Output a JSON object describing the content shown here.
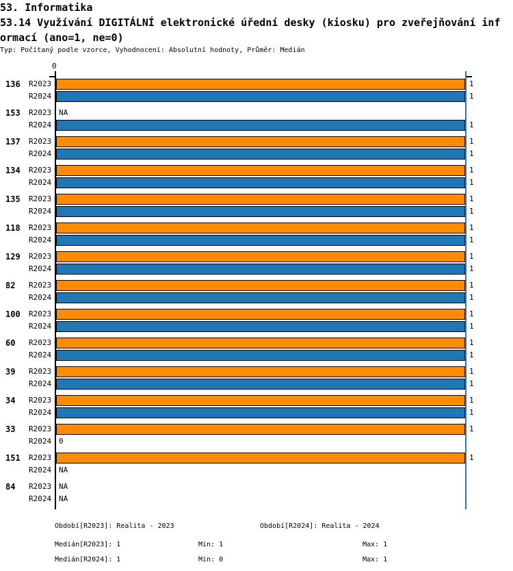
{
  "header": {
    "line1": "53. Informatika",
    "line2": "53.14 Využívání DIGITÁLNÍ elektronické úřední desky (kiosku) pro zveřejňování inf",
    "line3": "ormací (ano=1, ne=0)",
    "meta": "Typ: Počítaný podle vzorce, Vyhodnocení: Absolutní hodnoty, Průměr: Medián"
  },
  "chart_data": {
    "type": "bar",
    "orientation": "horizontal",
    "title": "53.14 Využívání DIGITÁLNÍ elektronické úřední desky (kiosku) pro zveřejňování informací (ano=1, ne=0)",
    "x_axis": {
      "zero_label": "0",
      "xlim": [
        0,
        1
      ],
      "reference_line_value": 1
    },
    "series_names": [
      "R2023",
      "R2024"
    ],
    "colors": {
      "R2023": "#FF8C00",
      "R2024": "#1F77B4",
      "reference_line": "#2878B8"
    },
    "categories": [
      "136",
      "153",
      "137",
      "134",
      "135",
      "118",
      "129",
      "82",
      "100",
      "60",
      "39",
      "34",
      "33",
      "151",
      "84"
    ],
    "groups": [
      {
        "id": "136",
        "bars": [
          {
            "period": "R2023",
            "value": 1,
            "label": "1"
          },
          {
            "period": "R2024",
            "value": 1,
            "label": "1"
          }
        ]
      },
      {
        "id": "153",
        "bars": [
          {
            "period": "R2023",
            "value": null,
            "label": "NA"
          },
          {
            "period": "R2024",
            "value": 1,
            "label": "1"
          }
        ]
      },
      {
        "id": "137",
        "bars": [
          {
            "period": "R2023",
            "value": 1,
            "label": "1"
          },
          {
            "period": "R2024",
            "value": 1,
            "label": "1"
          }
        ]
      },
      {
        "id": "134",
        "bars": [
          {
            "period": "R2023",
            "value": 1,
            "label": "1"
          },
          {
            "period": "R2024",
            "value": 1,
            "label": "1"
          }
        ]
      },
      {
        "id": "135",
        "bars": [
          {
            "period": "R2023",
            "value": 1,
            "label": "1"
          },
          {
            "period": "R2024",
            "value": 1,
            "label": "1"
          }
        ]
      },
      {
        "id": "118",
        "bars": [
          {
            "period": "R2023",
            "value": 1,
            "label": "1"
          },
          {
            "period": "R2024",
            "value": 1,
            "label": "1"
          }
        ]
      },
      {
        "id": "129",
        "bars": [
          {
            "period": "R2023",
            "value": 1,
            "label": "1"
          },
          {
            "period": "R2024",
            "value": 1,
            "label": "1"
          }
        ]
      },
      {
        "id": "82",
        "bars": [
          {
            "period": "R2023",
            "value": 1,
            "label": "1"
          },
          {
            "period": "R2024",
            "value": 1,
            "label": "1"
          }
        ]
      },
      {
        "id": "100",
        "bars": [
          {
            "period": "R2023",
            "value": 1,
            "label": "1"
          },
          {
            "period": "R2024",
            "value": 1,
            "label": "1"
          }
        ]
      },
      {
        "id": "60",
        "bars": [
          {
            "period": "R2023",
            "value": 1,
            "label": "1"
          },
          {
            "period": "R2024",
            "value": 1,
            "label": "1"
          }
        ]
      },
      {
        "id": "39",
        "bars": [
          {
            "period": "R2023",
            "value": 1,
            "label": "1"
          },
          {
            "period": "R2024",
            "value": 1,
            "label": "1"
          }
        ]
      },
      {
        "id": "34",
        "bars": [
          {
            "period": "R2023",
            "value": 1,
            "label": "1"
          },
          {
            "period": "R2024",
            "value": 1,
            "label": "1"
          }
        ]
      },
      {
        "id": "33",
        "bars": [
          {
            "period": "R2023",
            "value": 1,
            "label": "1"
          },
          {
            "period": "R2024",
            "value": 0,
            "label": "0"
          }
        ]
      },
      {
        "id": "151",
        "bars": [
          {
            "period": "R2023",
            "value": 1,
            "label": "1"
          },
          {
            "period": "R2024",
            "value": null,
            "label": "NA"
          }
        ]
      },
      {
        "id": "84",
        "bars": [
          {
            "period": "R2023",
            "value": null,
            "label": "NA"
          },
          {
            "period": "R2024",
            "value": null,
            "label": "NA"
          }
        ]
      }
    ]
  },
  "footer": {
    "period_r2023": "Období[R2023]: Realita - 2023",
    "period_r2024": "Období[R2024]: Realita - 2024",
    "median_r2023": "Medián[R2023]: 1",
    "min_r2023": "Min: 1",
    "max_r2023": "Max: 1",
    "median_r2024": "Medián[R2024]: 1",
    "min_r2024": "Min: 0",
    "max_r2024": "Max: 1"
  }
}
